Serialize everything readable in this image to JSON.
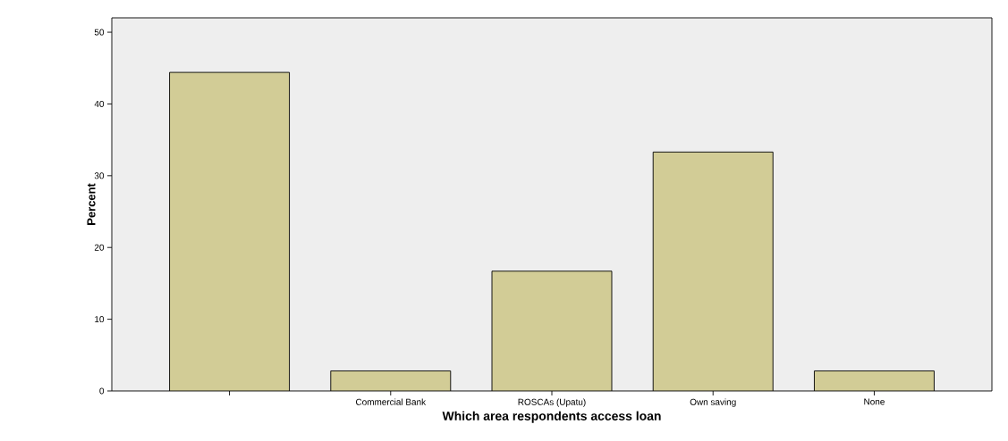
{
  "chart_data": {
    "type": "bar",
    "xlabel": "Which area respondents access loan",
    "ylabel": "Percent",
    "categories": [
      null,
      "Commercial Bank",
      "ROSCAs (Upatu)",
      "Own saving",
      "None"
    ],
    "values": [
      44.4,
      2.8,
      16.7,
      33.3,
      2.8
    ],
    "color": "#d2cc96",
    "ylim": [
      0,
      52
    ],
    "yticks": [
      0,
      10,
      20,
      30,
      40,
      50
    ],
    "grid": false,
    "legend": false
  }
}
